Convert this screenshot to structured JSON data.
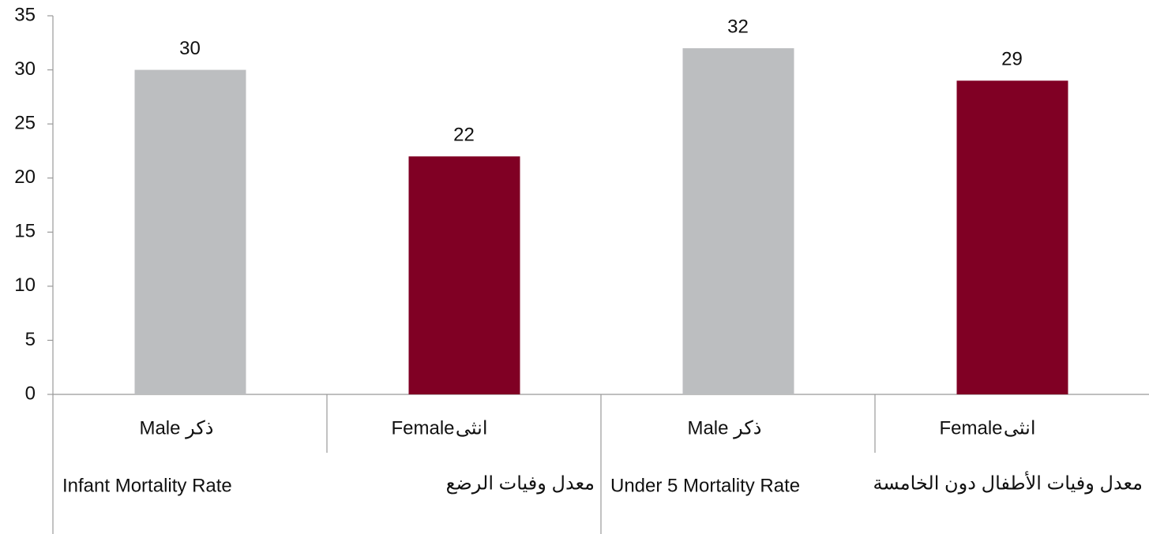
{
  "chart_data": {
    "type": "bar",
    "categories": [
      "Male",
      "Female",
      "Male",
      "Female"
    ],
    "categories_ar": [
      "ذكر",
      "انثى",
      "ذكر",
      "انثى"
    ],
    "groups": [
      {
        "label": "Infant Mortality Rate",
        "label_ar": "معدل وفيات الرضع"
      },
      {
        "label": "Under 5 Mortality Rate",
        "label_ar": "معدل وفيات الأطفال دون الخامسة"
      }
    ],
    "values": [
      30,
      22,
      32,
      29
    ],
    "colors": [
      "#bcbec0",
      "#800024",
      "#bcbec0",
      "#800024"
    ],
    "ylim": [
      0,
      35
    ],
    "yticks": [
      0,
      5,
      10,
      15,
      20,
      25,
      30,
      35
    ],
    "grid": false
  }
}
